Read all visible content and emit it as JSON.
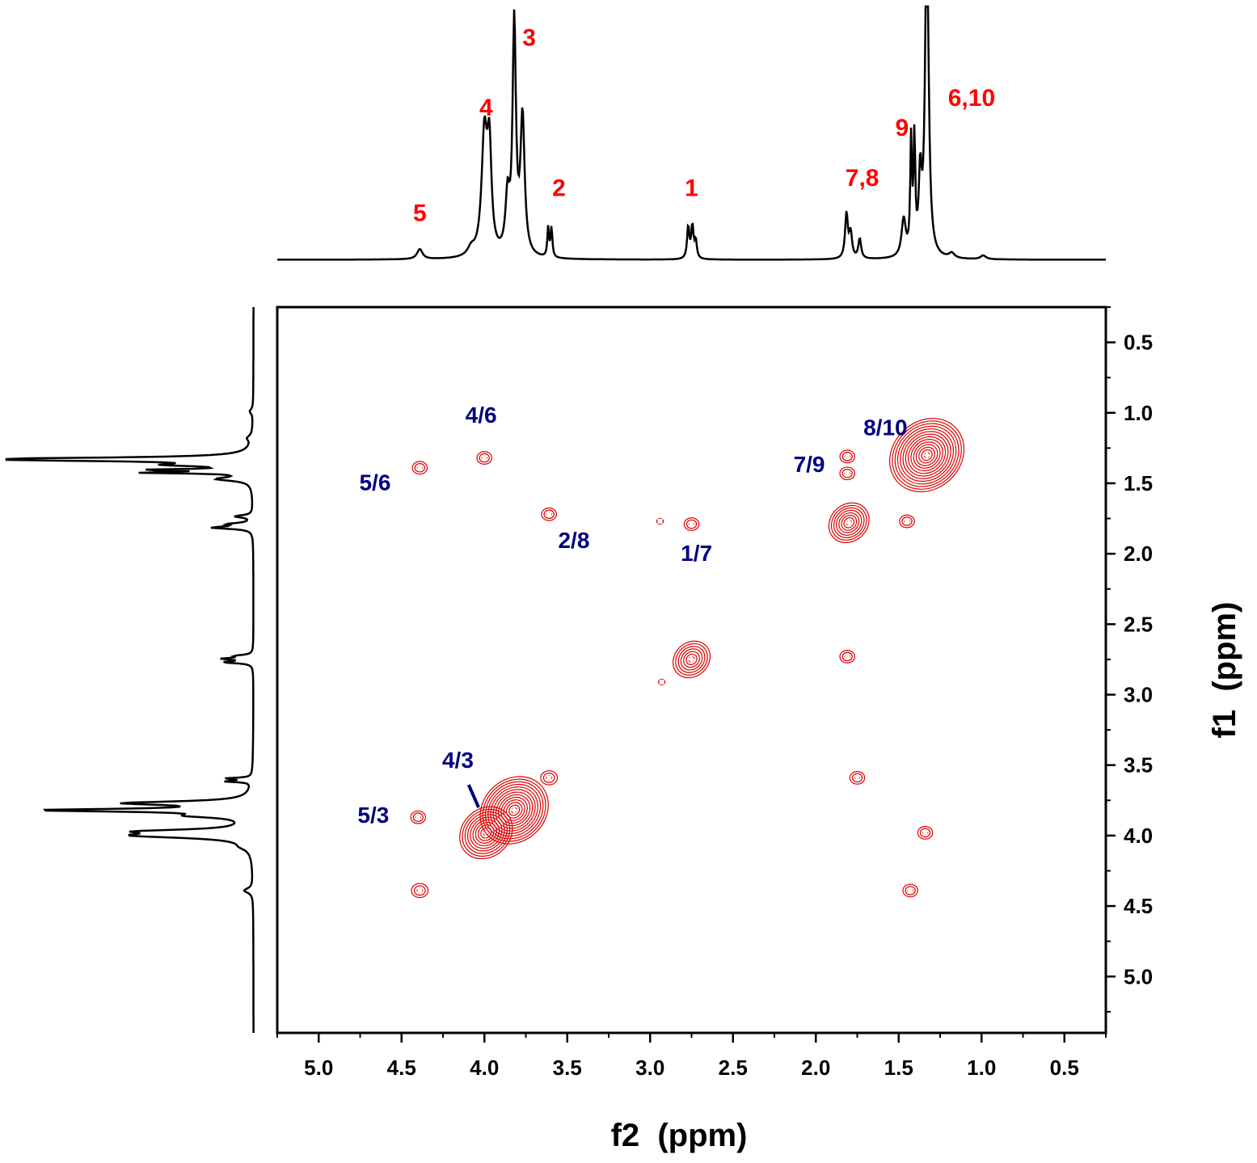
{
  "chart_data": {
    "type": "2D-COSY-NMR",
    "xlabel": "f2  (ppm)",
    "ylabel": "f1  (ppm)",
    "x_range": [
      5.25,
      0.25
    ],
    "y_range": [
      0.25,
      5.4
    ],
    "x_ticks": [
      {
        "value": 5.0,
        "label": "5.0"
      },
      {
        "value": 4.5,
        "label": "4.5"
      },
      {
        "value": 4.0,
        "label": "4.0"
      },
      {
        "value": 3.5,
        "label": "3.5"
      },
      {
        "value": 3.0,
        "label": "3.0"
      },
      {
        "value": 2.5,
        "label": "2.5"
      },
      {
        "value": 2.0,
        "label": "2.0"
      },
      {
        "value": 1.5,
        "label": "1.5"
      },
      {
        "value": 1.0,
        "label": "1.0"
      },
      {
        "value": 0.5,
        "label": "0.5"
      }
    ],
    "y_ticks": [
      {
        "value": 0.5,
        "label": "0.5"
      },
      {
        "value": 1.0,
        "label": "1.0"
      },
      {
        "value": 1.5,
        "label": "1.5"
      },
      {
        "value": 2.0,
        "label": "2.0"
      },
      {
        "value": 2.5,
        "label": "2.5"
      },
      {
        "value": 3.0,
        "label": "3.0"
      },
      {
        "value": 3.5,
        "label": "3.5"
      },
      {
        "value": 4.0,
        "label": "4.0"
      },
      {
        "value": 4.5,
        "label": "4.5"
      },
      {
        "value": 5.0,
        "label": "5.0"
      }
    ],
    "spectrum_1d": {
      "baseline": 0.005,
      "peaks": [
        {
          "ppm": 4.39,
          "height": 0.04,
          "width": 0.02
        },
        {
          "ppm": 4.08,
          "height": 0.03,
          "width": 0.025
        },
        {
          "ppm": 4.0,
          "height": 0.48,
          "width": 0.02
        },
        {
          "ppm": 3.97,
          "height": 0.4,
          "width": 0.015
        },
        {
          "ppm": 3.86,
          "height": 0.22,
          "width": 0.015
        },
        {
          "ppm": 3.82,
          "height": 0.92,
          "width": 0.012
        },
        {
          "ppm": 3.77,
          "height": 0.55,
          "width": 0.015
        },
        {
          "ppm": 3.615,
          "height": 0.12,
          "width": 0.006
        },
        {
          "ppm": 3.595,
          "height": 0.12,
          "width": 0.006
        },
        {
          "ppm": 2.77,
          "height": 0.13,
          "width": 0.008
        },
        {
          "ppm": 2.745,
          "height": 0.13,
          "width": 0.008
        },
        {
          "ppm": 2.725,
          "height": 0.07,
          "width": 0.008
        },
        {
          "ppm": 1.815,
          "height": 0.18,
          "width": 0.01
        },
        {
          "ppm": 1.79,
          "height": 0.1,
          "width": 0.01
        },
        {
          "ppm": 1.735,
          "height": 0.08,
          "width": 0.01
        },
        {
          "ppm": 1.47,
          "height": 0.15,
          "width": 0.015
        },
        {
          "ppm": 1.425,
          "height": 0.45,
          "width": 0.006
        },
        {
          "ppm": 1.405,
          "height": 0.45,
          "width": 0.006
        },
        {
          "ppm": 1.37,
          "height": 0.3,
          "width": 0.01
        },
        {
          "ppm": 1.33,
          "height": 1.4,
          "width": 0.012
        },
        {
          "ppm": 1.18,
          "height": 0.02,
          "width": 0.02
        },
        {
          "ppm": 0.99,
          "height": 0.015,
          "width": 0.02
        }
      ]
    },
    "peak_labels": [
      {
        "label": "5",
        "ppm": 4.39,
        "offset": 0.16
      },
      {
        "label": "4",
        "ppm": 3.99,
        "offset": 0.58
      },
      {
        "label": "3",
        "ppm": 3.73,
        "offset": 0.86
      },
      {
        "label": "2",
        "ppm": 3.55,
        "offset": 0.26
      },
      {
        "label": "1",
        "ppm": 2.75,
        "offset": 0.26
      },
      {
        "label": "7,8",
        "ppm": 1.72,
        "offset": 0.3
      },
      {
        "label": "9",
        "ppm": 1.48,
        "offset": 0.5
      },
      {
        "label": "6,10",
        "ppm": 1.06,
        "offset": 0.62
      }
    ],
    "diagonal_peaks": [
      {
        "f2": 4.39,
        "f1": 4.39,
        "size": 0.05
      },
      {
        "f2": 3.99,
        "f1": 3.98,
        "size": 0.17
      },
      {
        "f2": 3.82,
        "f1": 3.82,
        "size": 0.22
      },
      {
        "f2": 3.61,
        "f1": 3.59,
        "size": 0.05
      },
      {
        "f2": 2.75,
        "f1": 2.75,
        "size": 0.12
      },
      {
        "f2": 1.8,
        "f1": 1.78,
        "size": 0.13
      },
      {
        "f2": 1.33,
        "f1": 1.3,
        "size": 0.24
      }
    ],
    "cross_peaks": [
      {
        "label": "5/6",
        "f2": 4.39,
        "f1": 1.39
      },
      {
        "label": "4/6",
        "f2": 4.0,
        "f1": 1.32
      },
      {
        "label": "2/8",
        "f2": 3.61,
        "f1": 1.72
      },
      {
        "label": "1/7",
        "f2": 2.75,
        "f1": 1.79
      },
      {
        "label": "7/9",
        "f2": 1.81,
        "f1": 1.43
      },
      {
        "label": "8/10",
        "f2": 1.81,
        "f1": 1.31
      },
      {
        "label": "5/3",
        "f2": 4.4,
        "f1": 3.87
      },
      {
        "label": "4/3",
        "f2": 3.82,
        "f1": 3.82
      },
      {
        "label": "",
        "f2": 1.45,
        "f1": 1.77
      },
      {
        "label": "",
        "f2": 1.81,
        "f1": 2.73
      },
      {
        "label": "",
        "f2": 1.75,
        "f1": 3.59
      },
      {
        "label": "",
        "f2": 1.34,
        "f1": 3.98
      },
      {
        "label": "",
        "f2": 1.43,
        "f1": 4.39
      },
      {
        "label": "",
        "f2": 2.94,
        "f1": 1.77
      },
      {
        "label": "",
        "f2": 2.93,
        "f1": 2.91
      }
    ],
    "cross_label_positions": [
      {
        "label": "5/6",
        "f2": 4.66,
        "f1": 1.55
      },
      {
        "label": "4/6",
        "f2": 4.02,
        "f1": 1.07
      },
      {
        "label": "2/8",
        "f2": 3.46,
        "f1": 1.96
      },
      {
        "label": "1/7",
        "f2": 2.72,
        "f1": 2.05
      },
      {
        "label": "7/9",
        "f2": 2.04,
        "f1": 1.42
      },
      {
        "label": "8/10",
        "f2": 1.58,
        "f1": 1.16
      },
      {
        "label": "5/3",
        "f2": 4.67,
        "f1": 3.91
      },
      {
        "label": "4/3",
        "f2": 4.16,
        "f1": 3.52
      }
    ],
    "colors": {
      "contour": "#dd0000",
      "peak_label": "#ff0000",
      "cross_label": "#000080",
      "axis": "#000000"
    }
  }
}
